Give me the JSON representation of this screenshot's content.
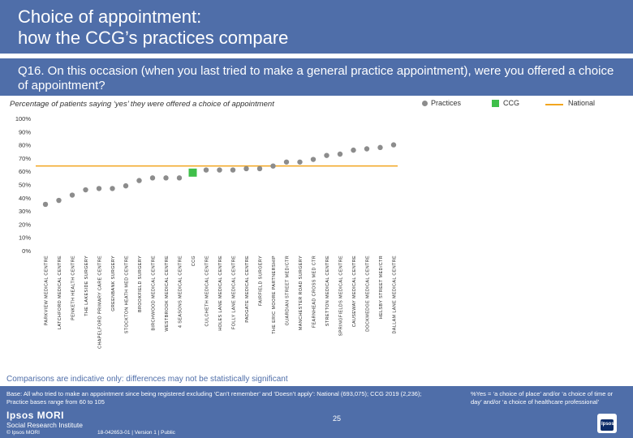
{
  "header": {
    "title_line1": "Choice of appointment:",
    "title_line2": "how the CCG’s practices compare"
  },
  "question": "Q16. On this occasion (when you last tried to make a general practice appointment), were you offered a choice of appointment?",
  "subtitle": "Percentage of patients saying ‘yes’ they were offered a choice of appointment",
  "legend": {
    "practices": "Practices",
    "ccg": "CCG",
    "national": "National"
  },
  "colors": {
    "header_bg": "#4f6ea9",
    "practice_marker": "#8c8c8c",
    "ccg_marker": "#3fbf4a",
    "national_line": "#f2a51f"
  },
  "chart_data": {
    "type": "scatter",
    "y_ticks": [
      "0%",
      "10%",
      "20%",
      "30%",
      "40%",
      "50%",
      "60%",
      "70%",
      "80%",
      "90%",
      "100%"
    ],
    "ylim": [
      0,
      100
    ],
    "national_value": 64,
    "ccg_label": "CCG",
    "categories": [
      "PARKVIEW MEDICAL CENTRE",
      "LATCHFORD MEDICAL CENTRE",
      "PENKETH HEALTH CENTRE",
      "THE LAKESIDE SURGERY",
      "CHAPELFORD PRIMARY CARE CENTRE",
      "GREENBANK SURGERY",
      "STOCKTON HEATH MED CENTRE",
      "BROOKFIELD SURGERY",
      "BIRCHWOOD MEDICAL CENTRE",
      "WESTBROOK MEDICAL CENTRE",
      "4 SEASONS MEDICAL CENTRE",
      "CCG",
      "CULCHETH MEDICAL CENTRE",
      "HOLES LANE MEDICAL CENTRE",
      "FOLLY LANE MEDICAL CENTRE",
      "PADGATE MEDICAL CENTRE",
      "FAIRFIELD SURGERY",
      "THE ERIC MOORE PARTNERSHIP",
      "GUARDIAN STREET MED/CTR",
      "MANCHESTER ROAD SURGERY",
      "FEARNHEAD CROSS MED CTR",
      "STRETTON MEDICAL CENTRE",
      "SPRINGFIELDS MEDICAL CENTRE",
      "CAUSEWAY MEDICAL CENTRE",
      "DOCKMEDGE MEDICAL CENTRE",
      "HELSBY STREET MED/CTR",
      "DALLAM LANE MEDICAL CENTRE"
    ],
    "values": [
      35,
      38,
      42,
      46,
      47,
      47,
      49,
      53,
      55,
      55,
      55,
      59,
      61,
      61,
      61,
      62,
      62,
      64,
      67,
      67,
      69,
      72,
      73,
      76,
      77,
      78,
      80
    ]
  },
  "disclaimer": "Comparisons are indicative only: differences may not be statistically significant",
  "footer": {
    "base": "Base: All who tried to make an appointment since being registered excluding ‘Can’t remember’ and ‘Doesn’t apply’: National (693,075); CCG 2019 (2,236); Practice bases range from 60 to 105",
    "note": "%Yes = ‘a choice of place’ and/or ‘a choice of time or day’ and/or ‘a choice of healthcare professional’",
    "logo_name": "Ipsos MORI",
    "logo_sub": "Social Research Institute",
    "copyright": "© Ipsos MORI",
    "job_ref": "18-042653-01 | Version 1 | Public",
    "page_number": "25",
    "ipsos_mark": "Ipsos"
  }
}
